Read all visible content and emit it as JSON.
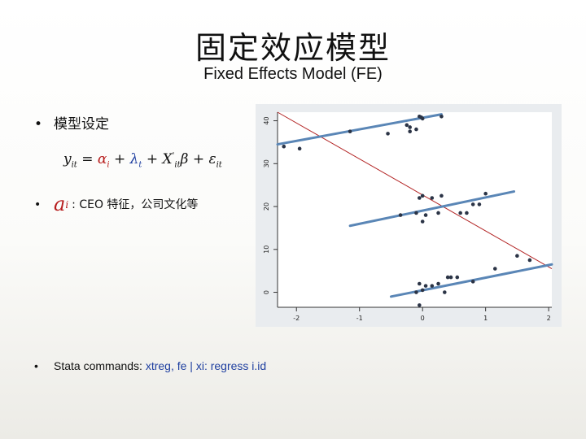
{
  "title_cn": "固定效应模型",
  "title_en": "Fixed Effects Model (FE)",
  "bullets": {
    "model_setup": "模型设定",
    "alpha_desc": ": CEO 特征，公司文化等",
    "alpha_symbol": "a",
    "alpha_subscript": "i",
    "stata_prefix": "Stata commands: ",
    "stata_cmd1": "xtreg, fe",
    "stata_sep": " | ",
    "stata_cmd2": "xi: regress i.id"
  },
  "equation": {
    "y": "y",
    "y_sub": "it",
    "eq": " = ",
    "alpha": "α",
    "alpha_sub": "i",
    "plus1": " + ",
    "lambda": "λ",
    "lambda_sub": "t",
    "plus2": " + ",
    "X": "X",
    "X_sup": "'",
    "X_sub": "it",
    "beta": "β",
    "plus3": " + ",
    "eps": "ε",
    "eps_sub": "it"
  },
  "colors": {
    "fit_line": "#5a86b6",
    "pooled_line": "#b22222",
    "points": "#2b3446",
    "plot_bg": "#e9ecef",
    "plot_area": "#ffffff"
  },
  "chart_data": {
    "type": "scatter",
    "xlim": [
      -2.3,
      2.05
    ],
    "ylim": [
      -3.5,
      42
    ],
    "xticks": [
      -2,
      -1,
      0,
      1,
      2
    ],
    "yticks": [
      0,
      10,
      20,
      30,
      40
    ],
    "tick_labels_x": [
      "-2",
      "-1",
      "0",
      "1",
      "2"
    ],
    "tick_labels_y": [
      "0",
      "10",
      "20",
      "30",
      "40"
    ],
    "grid": false,
    "points": [
      [
        -2.2,
        34
      ],
      [
        -1.95,
        33.5
      ],
      [
        -1.15,
        37.5
      ],
      [
        -0.55,
        37
      ],
      [
        -0.2,
        37.5
      ],
      [
        -0.2,
        38.5
      ],
      [
        -0.25,
        39
      ],
      [
        -0.1,
        38
      ],
      [
        0,
        40.5
      ],
      [
        -0.02,
        40.8
      ],
      [
        0.3,
        41
      ],
      [
        -0.05,
        41
      ],
      [
        -0.05,
        22
      ],
      [
        0,
        22.5
      ],
      [
        0.15,
        22
      ],
      [
        0.3,
        22.5
      ],
      [
        -0.35,
        18
      ],
      [
        -0.1,
        18.5
      ],
      [
        0,
        16.5
      ],
      [
        0.05,
        18
      ],
      [
        0.25,
        18.5
      ],
      [
        0.6,
        18.5
      ],
      [
        0.7,
        18.5
      ],
      [
        0.8,
        20.5
      ],
      [
        0.9,
        20.5
      ],
      [
        1.0,
        23
      ],
      [
        -0.05,
        -3
      ],
      [
        -0.1,
        0
      ],
      [
        0,
        0.5
      ],
      [
        0.05,
        1.5
      ],
      [
        -0.05,
        2
      ],
      [
        0.15,
        1.5
      ],
      [
        0.25,
        2
      ],
      [
        0.35,
        0
      ],
      [
        0.4,
        3.5
      ],
      [
        0.45,
        3.5
      ],
      [
        0.55,
        3.5
      ],
      [
        0.8,
        2.5
      ],
      [
        1.15,
        5.5
      ],
      [
        1.5,
        8.5
      ],
      [
        1.7,
        7.5
      ]
    ],
    "fit_lines": [
      {
        "x": [
          -2.3,
          0.3
        ],
        "y": [
          34.5,
          41.5
        ]
      },
      {
        "x": [
          -1.15,
          1.45
        ],
        "y": [
          15.5,
          23.5
        ]
      },
      {
        "x": [
          -0.5,
          2.05
        ],
        "y": [
          -1,
          6.5
        ]
      }
    ],
    "pooled_line": {
      "x": [
        -2.3,
        2.05
      ],
      "y": [
        42,
        5.5
      ]
    }
  }
}
